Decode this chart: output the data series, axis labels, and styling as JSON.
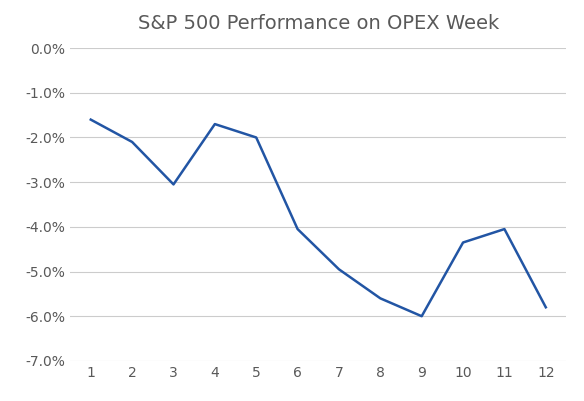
{
  "title": "S&P 500 Performance on OPEX Week",
  "x": [
    1,
    2,
    3,
    4,
    5,
    6,
    7,
    8,
    9,
    10,
    11,
    12
  ],
  "y": [
    -0.016,
    -0.021,
    -0.0305,
    -0.017,
    -0.02,
    -0.0405,
    -0.0495,
    -0.056,
    -0.06,
    -0.0435,
    -0.0405,
    -0.058
  ],
  "line_color": "#2255a4",
  "line_width": 1.8,
  "ylim": [
    -0.07,
    0.0
  ],
  "yticks": [
    0.0,
    -0.01,
    -0.02,
    -0.03,
    -0.04,
    -0.05,
    -0.06,
    -0.07
  ],
  "xlim": [
    0.5,
    12.5
  ],
  "xticks": [
    1,
    2,
    3,
    4,
    5,
    6,
    7,
    8,
    9,
    10,
    11,
    12
  ],
  "background_color": "#ffffff",
  "grid_color": "#cccccc",
  "title_fontsize": 14,
  "tick_fontsize": 10,
  "title_color": "#595959",
  "tick_color": "#595959"
}
